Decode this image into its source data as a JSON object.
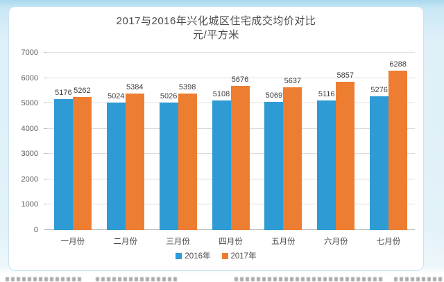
{
  "chart_data": {
    "type": "bar",
    "title": "2017与2016年兴化城区住宅成交均价对比",
    "subtitle": "元/平方米",
    "categories": [
      "一月份",
      "二月份",
      "三月份",
      "四月份",
      "五月份",
      "六月份",
      "七月份"
    ],
    "series": [
      {
        "name": "2016年",
        "color": "#2E9BD5",
        "values": [
          5176,
          5024,
          5026,
          5108,
          5069,
          5116,
          5276
        ]
      },
      {
        "name": "2017年",
        "color": "#ED7D31",
        "values": [
          5262,
          5384,
          5398,
          5676,
          5637,
          5857,
          6288
        ]
      }
    ],
    "ylim": [
      0,
      7000
    ],
    "yticks": [
      0,
      1000,
      2000,
      3000,
      4000,
      5000,
      6000,
      7000
    ],
    "grid": true,
    "legend_position": "bottom",
    "data_labels": true
  },
  "colors": {
    "series_2016": "#2E9BD5",
    "series_2017": "#ED7D31",
    "gridline": "#dcdcdc",
    "axis_line": "#b9b9b9",
    "label_text": "#3f3f3f",
    "frame_blue": "#a9d8ee"
  }
}
